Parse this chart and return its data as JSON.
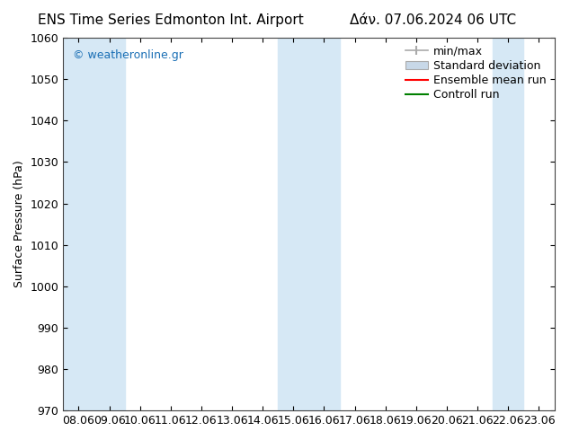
{
  "title_left": "ENS Time Series Edmonton Int. Airport",
  "title_right": "Δάν. 07.06.2024 06 UTC",
  "ylabel": "Surface Pressure (hPa)",
  "ylim": [
    970,
    1060
  ],
  "yticks": [
    970,
    980,
    990,
    1000,
    1010,
    1020,
    1030,
    1040,
    1050,
    1060
  ],
  "x_labels": [
    "08.06",
    "09.06",
    "10.06",
    "11.06",
    "12.06",
    "13.06",
    "14.06",
    "15.06",
    "16.06",
    "17.06",
    "18.06",
    "19.06",
    "20.06",
    "21.06",
    "22.06",
    "23.06"
  ],
  "x_values": [
    0,
    1,
    2,
    3,
    4,
    5,
    6,
    7,
    8,
    9,
    10,
    11,
    12,
    13,
    14,
    15
  ],
  "shaded_columns": [
    0,
    1,
    7,
    8,
    14
  ],
  "shaded_color": "#d6e8f5",
  "watermark": "© weatheronline.gr",
  "watermark_color": "#1a6fb5",
  "legend_items": [
    {
      "label": "min/max",
      "color": "#b0b0b0",
      "type": "errorbar"
    },
    {
      "label": "Standard deviation",
      "color": "#c8d8e8",
      "type": "fill"
    },
    {
      "label": "Ensemble mean run",
      "color": "red",
      "type": "line"
    },
    {
      "label": "Controll run",
      "color": "green",
      "type": "line"
    }
  ],
  "bg_color": "#ffffff",
  "plot_bg_color": "#ffffff",
  "font_color": "#000000",
  "font_size": 9,
  "title_font_size": 11
}
